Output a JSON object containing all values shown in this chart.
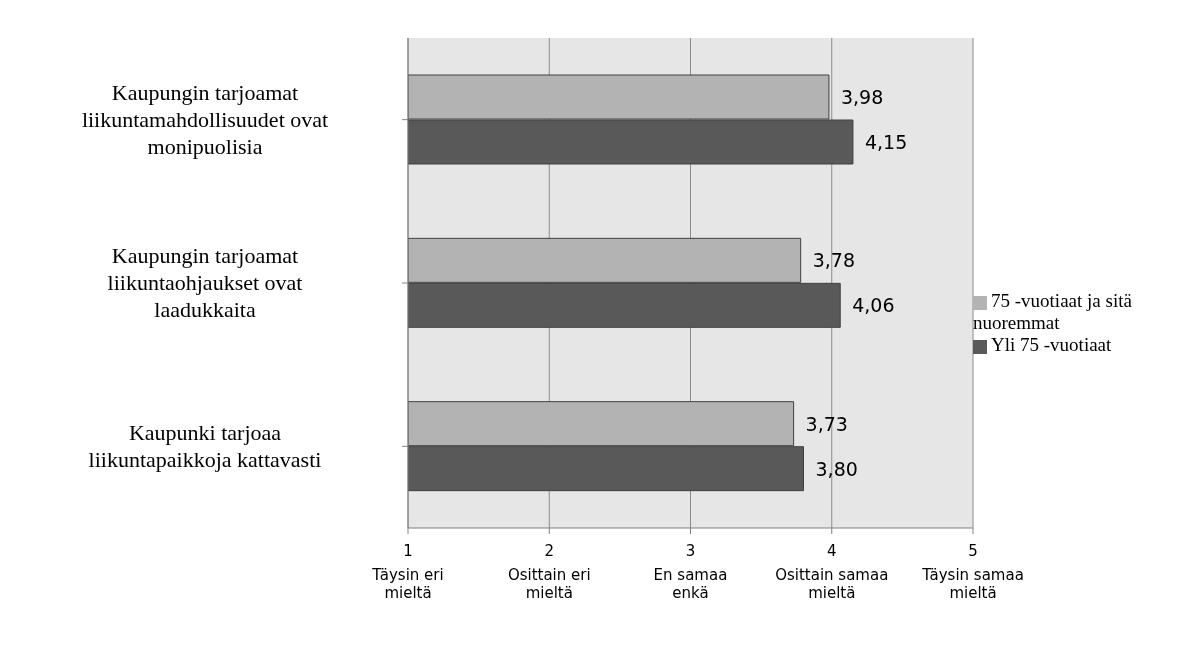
{
  "chart_data": {
    "type": "bar",
    "orientation": "horizontal",
    "categories": [
      "Kaupungin tarjoamat liikuntamahdollisuudet ovat monipuolisia",
      "Kaupungin tarjoamat liikuntaohjaukset ovat laadukkaita",
      "Kaupunki tarjoaa liikuntapaikkoja kattavasti"
    ],
    "series": [
      {
        "name": "75 -vuotiaat ja sitä nuoremmat",
        "color": "#b3b3b3",
        "values": [
          3.98,
          3.78,
          3.73
        ],
        "value_labels": [
          "3,98",
          "3,78",
          "3,73"
        ]
      },
      {
        "name": "Yli 75 -vuotiaat",
        "color": "#595959",
        "values": [
          4.15,
          4.06,
          3.8
        ],
        "value_labels": [
          "4,15",
          "4,06",
          "3,80"
        ]
      }
    ],
    "xlim": [
      1,
      5
    ],
    "xticks": [
      {
        "value": 1,
        "label": "1\nTäysin eri\nmieltä"
      },
      {
        "value": 2,
        "label": "2\nOsittain eri\nmieltä"
      },
      {
        "value": 3,
        "label": "3\nEn samaa\nenkä"
      },
      {
        "value": 4,
        "label": "4\nOsittain samaa\nmieltä"
      },
      {
        "value": 5,
        "label": "5\nTäysin samaa\nmieltä"
      }
    ],
    "grid": "x",
    "legend": "right"
  }
}
